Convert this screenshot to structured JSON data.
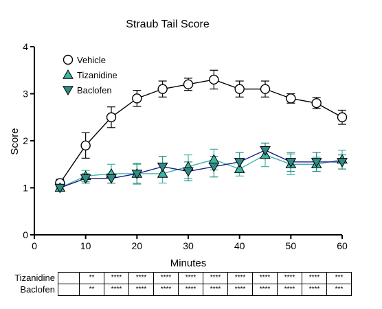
{
  "chart_data": {
    "type": "line",
    "title": "Straub Tail Score",
    "xlabel": "Minutes",
    "ylabel": "Score",
    "xlim": [
      0,
      60
    ],
    "ylim": [
      0,
      4
    ],
    "xticks": [
      0,
      10,
      20,
      30,
      40,
      50,
      60
    ],
    "yticks": [
      0,
      1,
      2,
      3,
      4
    ],
    "grid": false,
    "legend_position": "top-left",
    "x": [
      5,
      10,
      15,
      20,
      25,
      30,
      35,
      40,
      45,
      50,
      55,
      60
    ],
    "series": [
      {
        "name": "Vehicle",
        "marker": "circle-open",
        "color": "#000000",
        "values": [
          1.1,
          1.9,
          2.5,
          2.9,
          3.1,
          3.2,
          3.3,
          3.1,
          3.1,
          2.9,
          2.8,
          2.5
        ],
        "errors": [
          0.08,
          0.27,
          0.22,
          0.17,
          0.17,
          0.13,
          0.2,
          0.17,
          0.17,
          0.1,
          0.12,
          0.15
        ]
      },
      {
        "name": "Tizanidine",
        "marker": "triangle-up",
        "color": "#3db5a3",
        "values": [
          1.0,
          1.25,
          1.3,
          1.3,
          1.3,
          1.45,
          1.6,
          1.4,
          1.7,
          1.5,
          1.5,
          1.6
        ],
        "errors": [
          0.05,
          0.12,
          0.2,
          0.2,
          0.2,
          0.25,
          0.22,
          0.15,
          0.25,
          0.22,
          0.15,
          0.2
        ]
      },
      {
        "name": "Baclofen",
        "marker": "triangle-down",
        "color": "#2e8b86",
        "line_color": "#1a1a8a",
        "values": [
          1.0,
          1.2,
          1.2,
          1.3,
          1.45,
          1.35,
          1.45,
          1.55,
          1.8,
          1.55,
          1.55,
          1.55
        ],
        "errors": [
          0.05,
          0.1,
          0.1,
          0.22,
          0.22,
          0.2,
          0.22,
          0.2,
          0.15,
          0.2,
          0.2,
          0.15
        ]
      }
    ],
    "significance_table": {
      "rows": [
        {
          "label": "Tizanidine",
          "cells": [
            "",
            "**",
            "****",
            "****",
            "****",
            "****",
            "****",
            "****",
            "****",
            "****",
            "****",
            "***"
          ]
        },
        {
          "label": "Baclofen",
          "cells": [
            "",
            "**",
            "****",
            "****",
            "****",
            "****",
            "****",
            "****",
            "****",
            "****",
            "****",
            "***"
          ]
        }
      ]
    }
  }
}
